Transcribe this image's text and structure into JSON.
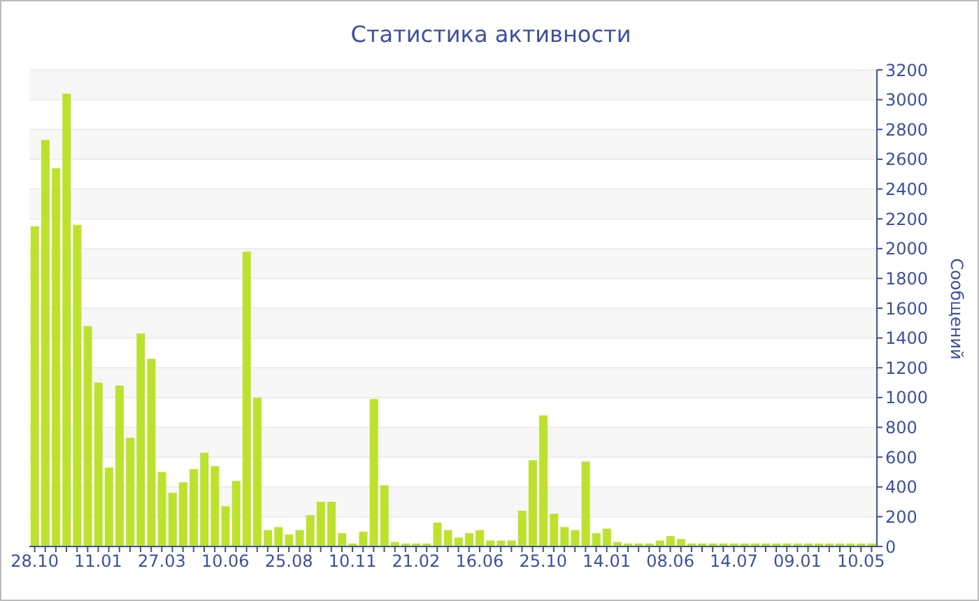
{
  "chart_data": {
    "type": "bar",
    "title": "Статистика активности",
    "ylabel": "Сообщений",
    "categories": [
      "28.10",
      null,
      null,
      null,
      null,
      null,
      "11.01",
      null,
      null,
      null,
      null,
      null,
      "27.03",
      null,
      null,
      null,
      null,
      null,
      "10.06",
      null,
      null,
      null,
      null,
      null,
      "25.08",
      null,
      null,
      null,
      null,
      null,
      "10.11",
      null,
      null,
      null,
      null,
      null,
      "21.02",
      null,
      null,
      null,
      null,
      null,
      "16.06",
      null,
      null,
      null,
      null,
      null,
      "25.10",
      null,
      null,
      null,
      null,
      null,
      "14.01",
      null,
      null,
      null,
      null,
      null,
      "08.06",
      null,
      null,
      null,
      null,
      null,
      "14.07",
      null,
      null,
      null,
      null,
      null,
      "09.01",
      null,
      null,
      null,
      null,
      null,
      "10.05",
      null
    ],
    "values": [
      2150,
      2730,
      2540,
      3040,
      2160,
      1480,
      1100,
      530,
      1080,
      730,
      1430,
      1260,
      500,
      360,
      430,
      520,
      630,
      540,
      270,
      440,
      1980,
      1000,
      110,
      130,
      80,
      110,
      210,
      300,
      300,
      90,
      20,
      100,
      990,
      410,
      30,
      20,
      20,
      20,
      160,
      110,
      60,
      90,
      110,
      40,
      40,
      40,
      240,
      580,
      880,
      220,
      130,
      110,
      570,
      90,
      120,
      30,
      20,
      20,
      20,
      40,
      70,
      50,
      20,
      20,
      20,
      20,
      20,
      20,
      20,
      20,
      20,
      20,
      20,
      20,
      20,
      20,
      20,
      20,
      20,
      20
    ],
    "color": "#bde22e",
    "ylim": [
      0,
      3200
    ],
    "yticks": [
      0,
      200,
      400,
      600,
      800,
      1000,
      1200,
      1400,
      1600,
      1800,
      2000,
      2200,
      2400,
      2600,
      2800,
      3000,
      3200
    ],
    "grid": "y"
  }
}
